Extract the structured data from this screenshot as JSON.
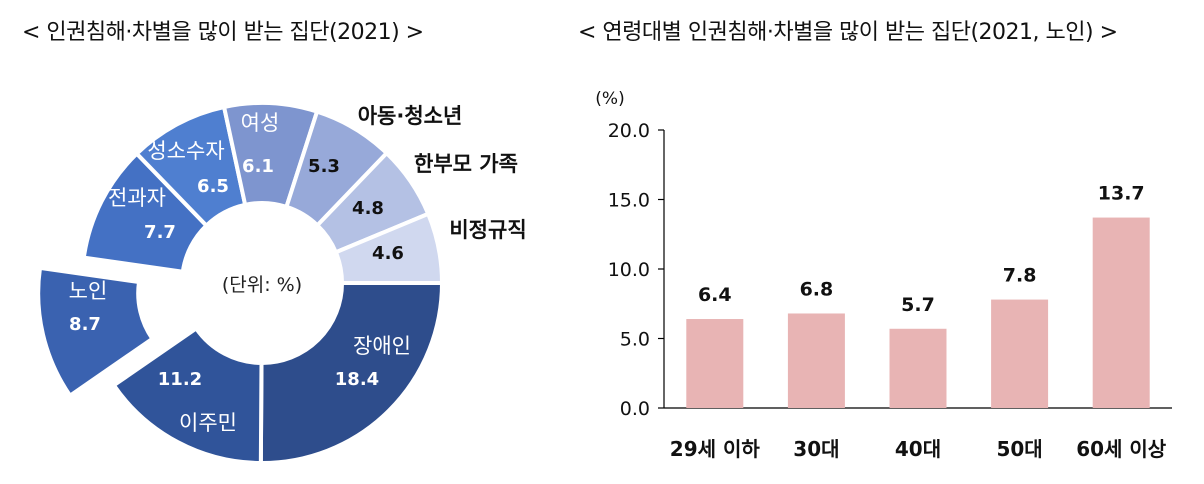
{
  "left_title": "< 인권침해·차별을 많이 받는 집단(2021) >",
  "right_title": "< 연령대별 인권침해·차별을 많이 받는 집단(2021, 노인) >",
  "chart_data": [
    {
      "type": "pie",
      "variant": "donut",
      "title": "< 인권침해·차별을 많이 받는 집단(2021) >",
      "center_label": "(단위: %)",
      "exploded": "노인",
      "slices": [
        {
          "label": "장애인",
          "value": 18.4,
          "color": "#2e4d8c"
        },
        {
          "label": "이주민",
          "value": 11.2,
          "color": "#30549a"
        },
        {
          "label": "노인",
          "value": 8.7,
          "color": "#3a62b0"
        },
        {
          "label": "전과자",
          "value": 7.7,
          "color": "#4471c4"
        },
        {
          "label": "성소수자",
          "value": 6.5,
          "color": "#4f7fd0"
        },
        {
          "label": "여성",
          "value": 6.1,
          "color": "#7e95cf"
        },
        {
          "label": "아동·청소년",
          "value": 5.3,
          "color": "#97a9d9"
        },
        {
          "label": "한부모 가족",
          "value": 4.8,
          "color": "#b4c1e4"
        },
        {
          "label": "비정규직",
          "value": 4.6,
          "color": "#d0d8ef"
        }
      ]
    },
    {
      "type": "bar",
      "title": "< 연령대별 인권침해·차별을 많이 받는 집단(2021, 노인) >",
      "ylabel": "(%)",
      "categories": [
        "29세 이하",
        "30대",
        "40대",
        "50대",
        "60세 이상"
      ],
      "values": [
        6.4,
        6.8,
        5.7,
        7.8,
        13.7
      ],
      "value_labels": [
        "6.4",
        "6.8",
        "5.7",
        "7.8",
        "13.7"
      ],
      "ylim": [
        0,
        20
      ],
      "yticks": [
        "0.0",
        "5.0",
        "10.0",
        "15.0",
        "20.0"
      ],
      "bar_color": "#e8b4b4",
      "grid": false
    }
  ]
}
